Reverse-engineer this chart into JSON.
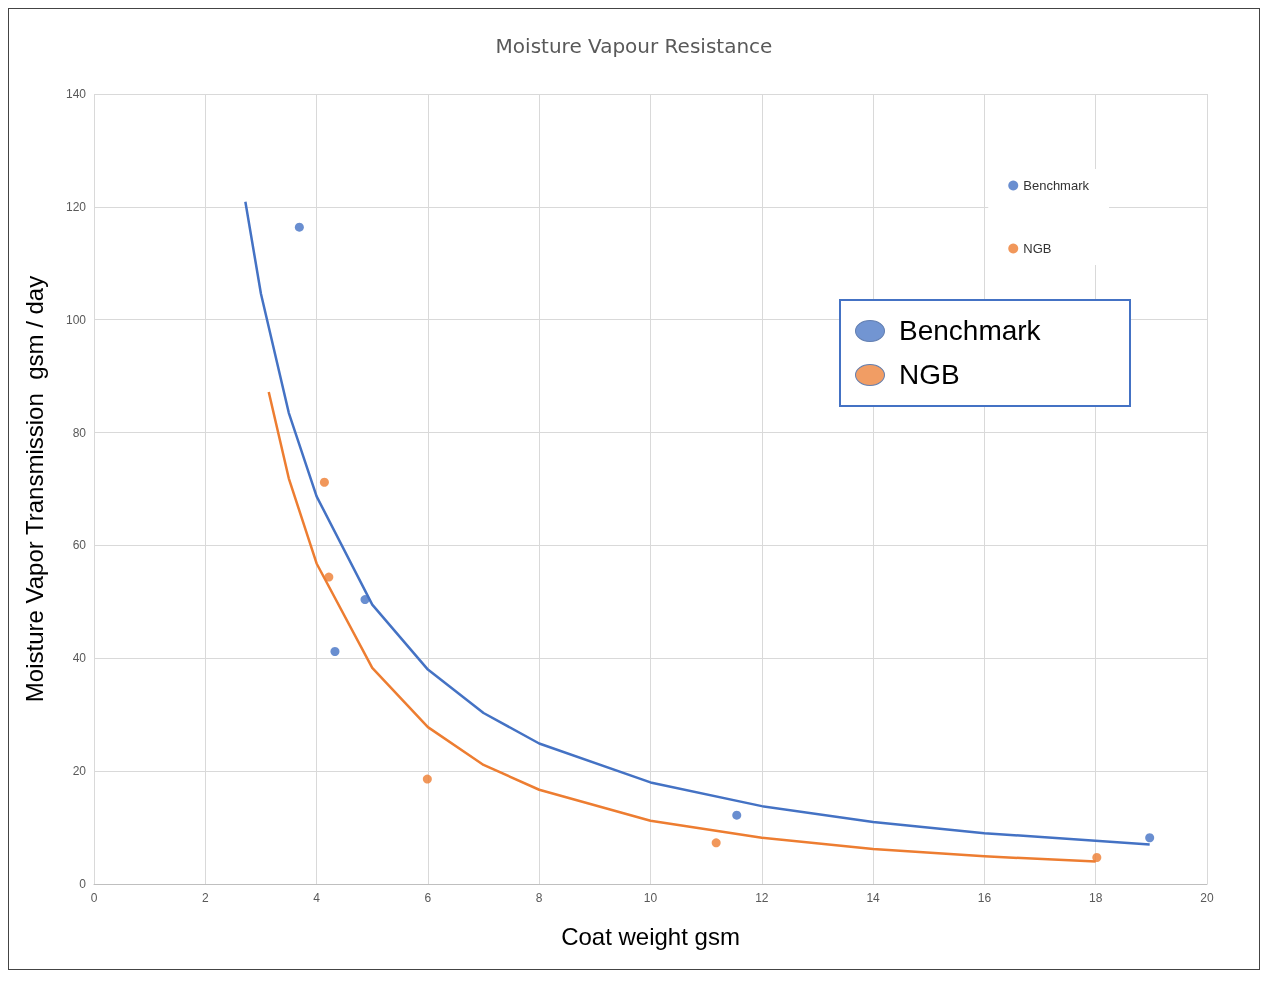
{
  "chart_data": {
    "type": "scatter",
    "title": "Moisture Vapour Resistance",
    "xlabel": "Coat weight gsm",
    "ylabel": "Moisture Vapor Transmission  gsm / day",
    "xlim": [
      0,
      20
    ],
    "xticks": [
      0,
      2,
      4,
      6,
      8,
      10,
      12,
      14,
      16,
      18,
      20
    ],
    "ylim": [
      0,
      140
    ],
    "yticks": [
      0,
      20,
      40,
      60,
      80,
      100,
      120,
      140
    ],
    "grid": true,
    "legend": "top right",
    "marker": "circle",
    "annotations": [
      "Benchmark",
      "NGB"
    ],
    "series": [
      {
        "name": "Benchmark",
        "color": "#4472c4",
        "x": [
          3.69,
          4.33,
          4.87,
          11.55,
          18.97
        ],
        "values": [
          116.4,
          41.2,
          50.4,
          12.2,
          8.2
        ]
      },
      {
        "name": "NGB",
        "color": "#ed7d31",
        "x": [
          4.14,
          4.22,
          5.99,
          11.18,
          18.02
        ],
        "values": [
          71.2,
          54.4,
          18.6,
          7.3,
          4.7
        ]
      },
      {
        "type": "line",
        "marker": "none",
        "color": "#4472c4",
        "x": [
          2.72,
          3,
          3.5,
          4,
          5,
          6,
          7,
          8,
          10,
          12,
          14,
          16,
          18.97
        ],
        "values": [
          120.9,
          104.6,
          83.5,
          68.7,
          49.5,
          38.0,
          30.3,
          24.9,
          18.0,
          13.8,
          11.0,
          9.0,
          7.0
        ]
      },
      {
        "type": "line",
        "marker": "none",
        "color": "#ed7d31",
        "x": [
          3.14,
          3.5,
          4,
          5,
          6,
          7,
          8,
          10,
          12,
          14,
          16,
          18
        ],
        "values": [
          87.2,
          71.9,
          56.8,
          38.3,
          27.8,
          21.1,
          16.7,
          11.2,
          8.2,
          6.2,
          4.9,
          4.0
        ]
      }
    ]
  }
}
